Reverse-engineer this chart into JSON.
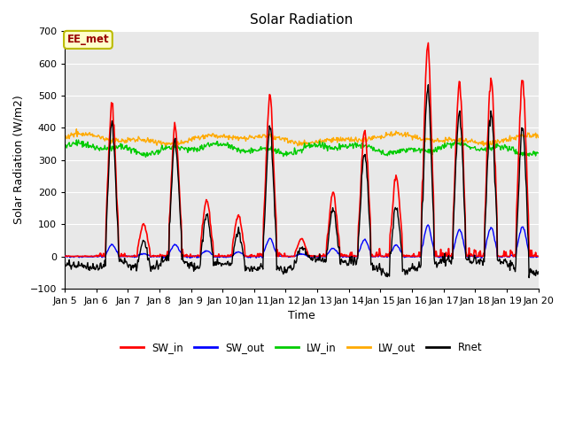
{
  "title": "Solar Radiation",
  "xlabel": "Time",
  "ylabel": "Solar Radiation (W/m2)",
  "ylim": [
    -100,
    700
  ],
  "colors": {
    "SW_in": "#ff0000",
    "SW_out": "#0000ff",
    "LW_in": "#00cc00",
    "LW_out": "#ffaa00",
    "Rnet": "#000000"
  },
  "xtick_labels": [
    "Jan 5",
    "Jan 6",
    "Jan 7",
    "Jan 8",
    "Jan 9",
    "Jan 10",
    "Jan 11",
    "Jan 12",
    "Jan 13",
    "Jan 14",
    "Jan 15",
    "Jan 16",
    "Jan 17",
    "Jan 18",
    "Jan 19",
    "Jan 20"
  ],
  "annotation_text": "EE_met",
  "annotation_bg": "#ffffcc",
  "annotation_border": "#bbbb00",
  "annotation_text_color": "#990000",
  "bg_color": "#e8e8e8",
  "grid_color": "#ffffff"
}
